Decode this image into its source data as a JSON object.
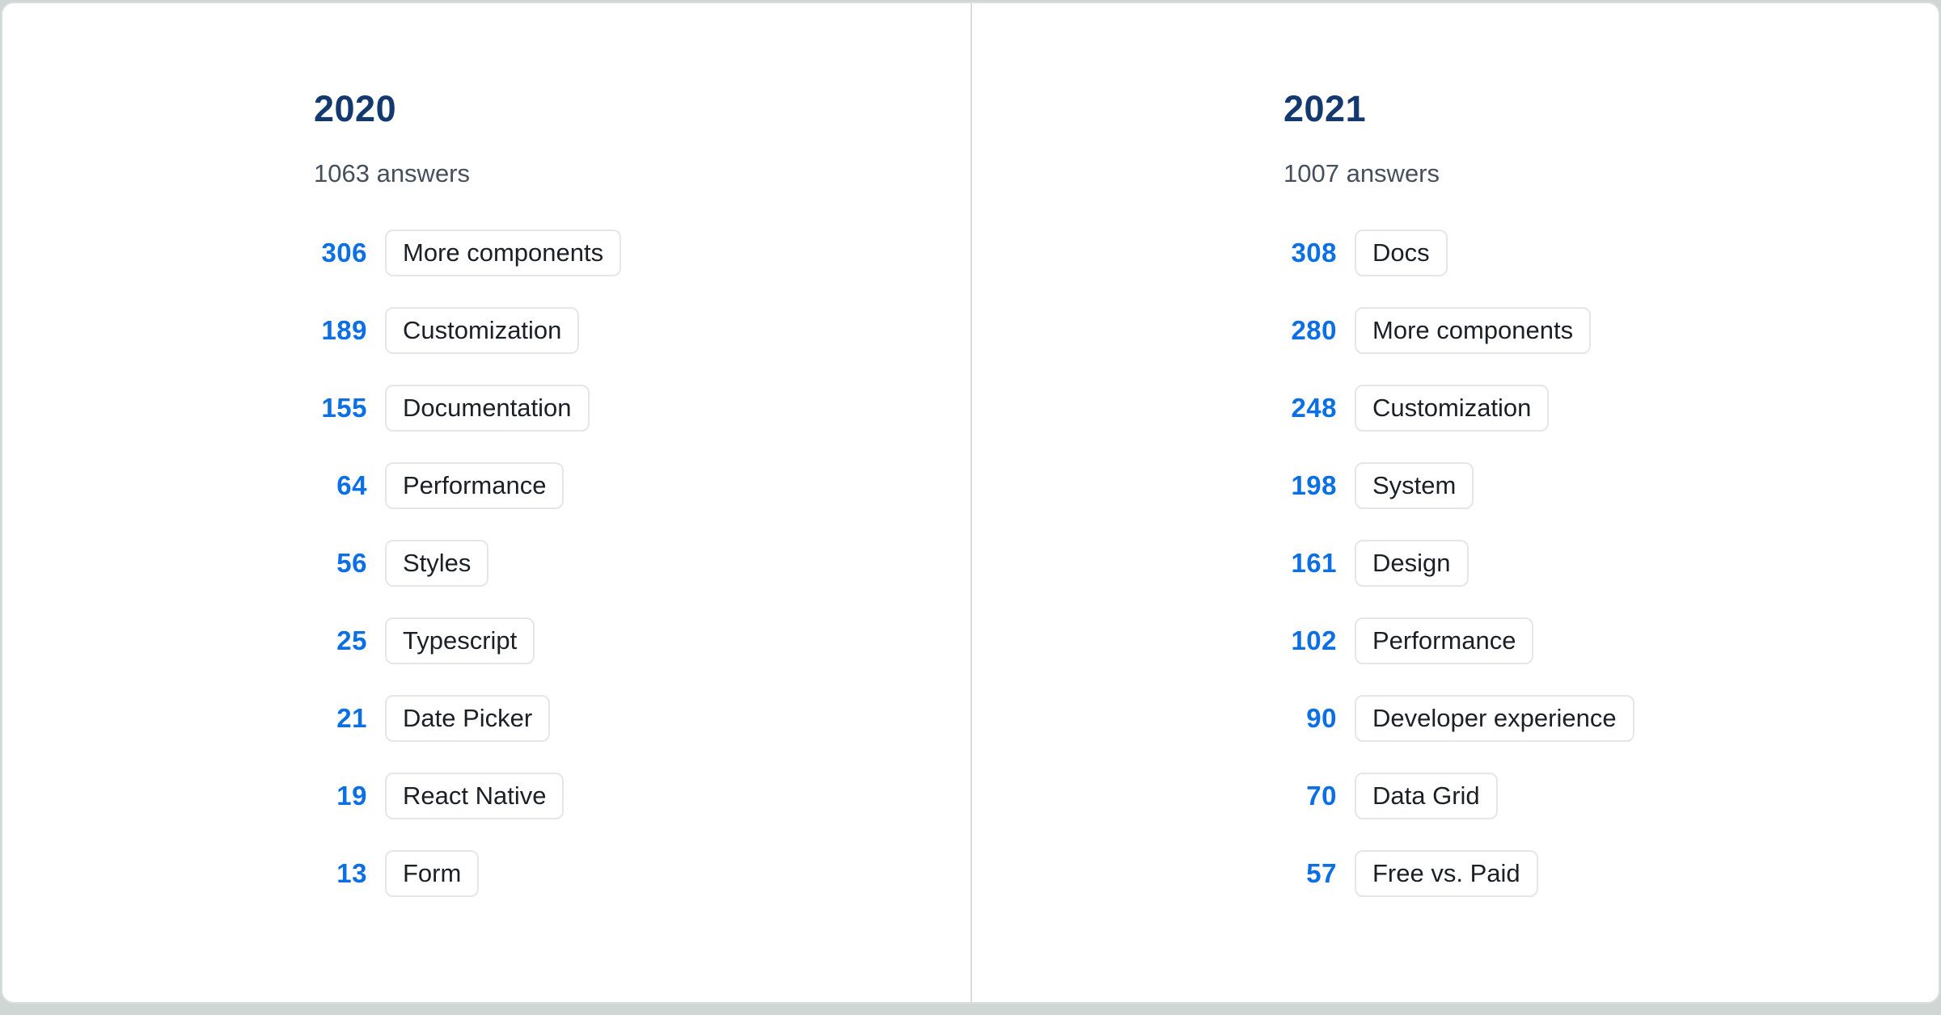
{
  "page": {
    "background": "#cfd6d3",
    "card_background": "#ffffff"
  },
  "colors": {
    "year_heading_navy": "#14396f",
    "count_blue": "#0c6fe4",
    "answers_gray": "#46505c",
    "chip_text": "#1b2027",
    "chip_border": "#e4e7ea",
    "card_border": "#d8dde0",
    "divider": "#d9dde0"
  },
  "columns": [
    {
      "year": "2020",
      "answers_label": "1063 answers",
      "items": [
        {
          "count": "306",
          "label": "More components"
        },
        {
          "count": "189",
          "label": "Customization"
        },
        {
          "count": "155",
          "label": "Documentation"
        },
        {
          "count": "64",
          "label": "Performance"
        },
        {
          "count": "56",
          "label": "Styles"
        },
        {
          "count": "25",
          "label": "Typescript"
        },
        {
          "count": "21",
          "label": "Date Picker"
        },
        {
          "count": "19",
          "label": "React Native"
        },
        {
          "count": "13",
          "label": "Form"
        }
      ]
    },
    {
      "year": "2021",
      "answers_label": "1007 answers",
      "items": [
        {
          "count": "308",
          "label": "Docs"
        },
        {
          "count": "280",
          "label": "More components"
        },
        {
          "count": "248",
          "label": "Customization"
        },
        {
          "count": "198",
          "label": "System"
        },
        {
          "count": "161",
          "label": "Design"
        },
        {
          "count": "102",
          "label": "Performance"
        },
        {
          "count": "90",
          "label": "Developer experience"
        },
        {
          "count": "70",
          "label": "Data Grid"
        },
        {
          "count": "57",
          "label": "Free vs. Paid"
        }
      ]
    }
  ],
  "chart_data": [
    {
      "type": "bar",
      "title": "2020",
      "subtitle": "1063 answers",
      "categories": [
        "More components",
        "Customization",
        "Documentation",
        "Performance",
        "Styles",
        "Typescript",
        "Date Picker",
        "React Native",
        "Form"
      ],
      "values": [
        306,
        189,
        155,
        64,
        56,
        25,
        21,
        19,
        13
      ],
      "xlabel": "",
      "ylabel": "answers",
      "legend": "none",
      "layout": "ranked-list, counts left of category chips"
    },
    {
      "type": "bar",
      "title": "2021",
      "subtitle": "1007 answers",
      "categories": [
        "Docs",
        "More components",
        "Customization",
        "System",
        "Design",
        "Performance",
        "Developer experience",
        "Data Grid",
        "Free vs. Paid"
      ],
      "values": [
        308,
        280,
        248,
        198,
        161,
        102,
        90,
        70,
        57
      ],
      "xlabel": "",
      "ylabel": "answers",
      "legend": "none",
      "layout": "ranked-list, counts left of category chips"
    }
  ]
}
